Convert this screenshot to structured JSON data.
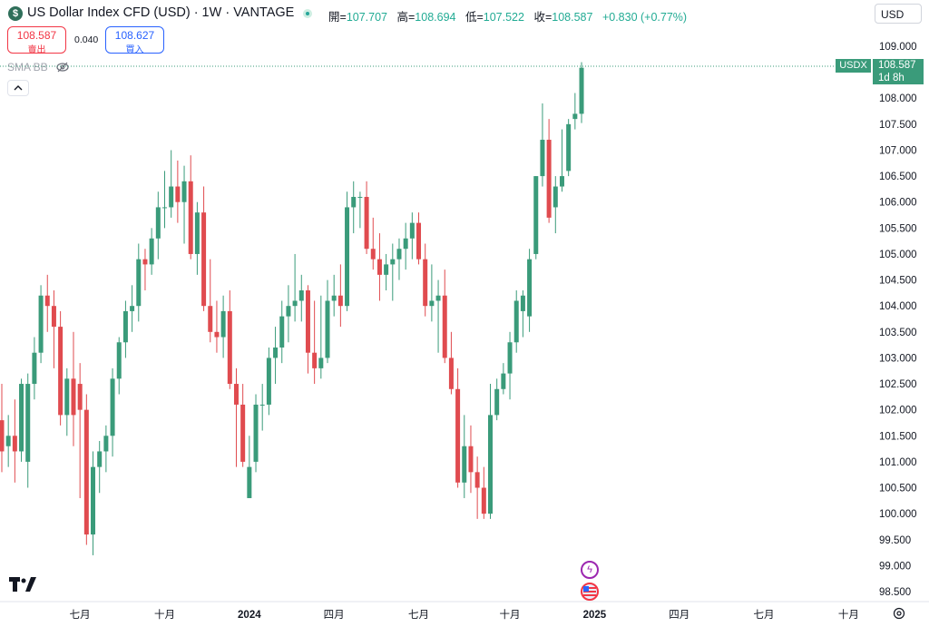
{
  "header": {
    "symbol_icon": "$",
    "title": "US Dollar Index CFD (USD) · 1W · VANTAGE",
    "ohlc": [
      {
        "label": "開=",
        "value": "107.707"
      },
      {
        "label": "高=",
        "value": "108.694"
      },
      {
        "label": "低=",
        "value": "107.522"
      },
      {
        "label": "收=",
        "value": "108.587"
      },
      {
        "label": "",
        "value": "+0.830 (+0.77%)"
      }
    ],
    "currency": "USD"
  },
  "trade": {
    "sell_price": "108.587",
    "sell_label": "賣出",
    "spread": "0.040",
    "buy_price": "108.627",
    "buy_label": "買入"
  },
  "indicator": {
    "name": "SMA BB"
  },
  "price_tag": {
    "symbol": "USDX",
    "price": "108.587",
    "countdown": "1d 8h"
  },
  "colors": {
    "up": "#3a9b7a",
    "down": "#e04b4f",
    "grid": "#f0f3fa"
  },
  "chart_data": {
    "type": "candlestick",
    "y_axis_labels": [
      "109.000",
      "108.500",
      "108.000",
      "107.500",
      "107.000",
      "106.500",
      "106.000",
      "105.500",
      "105.000",
      "104.500",
      "104.000",
      "103.500",
      "103.000",
      "102.500",
      "102.000",
      "101.500",
      "101.000",
      "100.500",
      "100.000",
      "99.500",
      "99.000",
      "98.500"
    ],
    "ylim": [
      98.3,
      109.3
    ],
    "x_axis_labels": [
      {
        "text": "七月",
        "bold": false
      },
      {
        "text": "十月",
        "bold": false
      },
      {
        "text": "2024",
        "bold": true
      },
      {
        "text": "四月",
        "bold": false
      },
      {
        "text": "七月",
        "bold": false
      },
      {
        "text": "十月",
        "bold": false
      },
      {
        "text": "2025",
        "bold": true
      },
      {
        "text": "四月",
        "bold": false
      },
      {
        "text": "七月",
        "bold": false
      },
      {
        "text": "十月",
        "bold": false
      }
    ],
    "x_label_candle_index": [
      12,
      25,
      38,
      51,
      64,
      78,
      91,
      104,
      117,
      130
    ],
    "candles": [
      {
        "o": 101.8,
        "h": 102.5,
        "l": 100.8,
        "c": 101.2
      },
      {
        "o": 101.3,
        "h": 101.9,
        "l": 100.9,
        "c": 101.5
      },
      {
        "o": 101.5,
        "h": 102.2,
        "l": 100.6,
        "c": 101.2
      },
      {
        "o": 101.2,
        "h": 102.6,
        "l": 101.0,
        "c": 102.5
      },
      {
        "o": 101.0,
        "h": 102.7,
        "l": 100.5,
        "c": 102.5
      },
      {
        "o": 102.5,
        "h": 103.4,
        "l": 102.2,
        "c": 103.1
      },
      {
        "o": 103.1,
        "h": 104.4,
        "l": 102.9,
        "c": 104.2
      },
      {
        "o": 104.2,
        "h": 104.6,
        "l": 103.5,
        "c": 104.0
      },
      {
        "o": 104.0,
        "h": 104.3,
        "l": 102.8,
        "c": 103.6
      },
      {
        "o": 103.6,
        "h": 103.9,
        "l": 101.7,
        "c": 101.9
      },
      {
        "o": 101.9,
        "h": 102.8,
        "l": 101.5,
        "c": 102.6
      },
      {
        "o": 102.6,
        "h": 103.5,
        "l": 101.3,
        "c": 101.9
      },
      {
        "o": 102.5,
        "h": 102.9,
        "l": 100.3,
        "c": 102.0
      },
      {
        "o": 102.0,
        "h": 102.3,
        "l": 99.4,
        "c": 99.6
      },
      {
        "o": 99.6,
        "h": 101.2,
        "l": 99.2,
        "c": 100.9
      },
      {
        "o": 100.9,
        "h": 101.4,
        "l": 100.4,
        "c": 101.2
      },
      {
        "o": 101.2,
        "h": 101.7,
        "l": 100.8,
        "c": 101.5
      },
      {
        "o": 101.5,
        "h": 102.8,
        "l": 101.1,
        "c": 102.6
      },
      {
        "o": 102.6,
        "h": 103.4,
        "l": 102.3,
        "c": 103.3
      },
      {
        "o": 103.3,
        "h": 104.1,
        "l": 103.0,
        "c": 103.9
      },
      {
        "o": 103.9,
        "h": 104.4,
        "l": 103.5,
        "c": 104.0
      },
      {
        "o": 104.0,
        "h": 105.2,
        "l": 103.7,
        "c": 104.9
      },
      {
        "o": 104.9,
        "h": 105.1,
        "l": 104.3,
        "c": 104.8
      },
      {
        "o": 104.8,
        "h": 105.5,
        "l": 104.6,
        "c": 105.3
      },
      {
        "o": 105.3,
        "h": 106.2,
        "l": 104.9,
        "c": 105.9
      },
      {
        "o": 105.9,
        "h": 106.6,
        "l": 105.5,
        "c": 105.9
      },
      {
        "o": 105.9,
        "h": 107.0,
        "l": 105.7,
        "c": 106.3
      },
      {
        "o": 106.3,
        "h": 106.8,
        "l": 105.6,
        "c": 106.0
      },
      {
        "o": 106.0,
        "h": 106.7,
        "l": 105.2,
        "c": 106.4
      },
      {
        "o": 106.4,
        "h": 106.9,
        "l": 104.9,
        "c": 105.0
      },
      {
        "o": 105.0,
        "h": 106.0,
        "l": 104.6,
        "c": 105.8
      },
      {
        "o": 105.8,
        "h": 106.3,
        "l": 103.9,
        "c": 104.0
      },
      {
        "o": 104.0,
        "h": 104.9,
        "l": 103.3,
        "c": 103.5
      },
      {
        "o": 103.5,
        "h": 104.1,
        "l": 103.1,
        "c": 103.4
      },
      {
        "o": 103.4,
        "h": 104.2,
        "l": 103.0,
        "c": 103.9
      },
      {
        "o": 103.9,
        "h": 104.3,
        "l": 102.4,
        "c": 102.5
      },
      {
        "o": 102.5,
        "h": 102.8,
        "l": 100.9,
        "c": 102.1
      },
      {
        "o": 102.1,
        "h": 102.5,
        "l": 100.9,
        "c": 101.0
      },
      {
        "o": 100.3,
        "h": 101.5,
        "l": 100.3,
        "c": 100.9
      },
      {
        "o": 101.0,
        "h": 102.3,
        "l": 100.8,
        "c": 102.1
      },
      {
        "o": 102.1,
        "h": 102.5,
        "l": 101.6,
        "c": 102.1
      },
      {
        "o": 102.1,
        "h": 103.2,
        "l": 101.9,
        "c": 103.0
      },
      {
        "o": 103.0,
        "h": 103.6,
        "l": 102.5,
        "c": 103.2
      },
      {
        "o": 103.2,
        "h": 104.1,
        "l": 102.9,
        "c": 103.8
      },
      {
        "o": 103.8,
        "h": 104.4,
        "l": 103.3,
        "c": 104.0
      },
      {
        "o": 104.0,
        "h": 105.0,
        "l": 103.7,
        "c": 104.1
      },
      {
        "o": 104.1,
        "h": 104.6,
        "l": 103.7,
        "c": 104.3
      },
      {
        "o": 104.3,
        "h": 104.4,
        "l": 102.7,
        "c": 103.1
      },
      {
        "o": 103.1,
        "h": 104.1,
        "l": 102.5,
        "c": 102.8
      },
      {
        "o": 102.8,
        "h": 104.2,
        "l": 102.6,
        "c": 103.0
      },
      {
        "o": 103.0,
        "h": 104.5,
        "l": 102.9,
        "c": 104.1
      },
      {
        "o": 104.1,
        "h": 104.6,
        "l": 103.8,
        "c": 104.2
      },
      {
        "o": 104.2,
        "h": 104.8,
        "l": 103.6,
        "c": 104.0
      },
      {
        "o": 104.0,
        "h": 106.2,
        "l": 103.9,
        "c": 105.9
      },
      {
        "o": 105.9,
        "h": 106.4,
        "l": 105.4,
        "c": 106.1
      },
      {
        "o": 106.1,
        "h": 106.2,
        "l": 105.5,
        "c": 106.1
      },
      {
        "o": 106.1,
        "h": 106.4,
        "l": 105.0,
        "c": 105.1
      },
      {
        "o": 105.1,
        "h": 105.7,
        "l": 104.7,
        "c": 104.9
      },
      {
        "o": 104.9,
        "h": 105.4,
        "l": 104.1,
        "c": 104.6
      },
      {
        "o": 104.6,
        "h": 105.0,
        "l": 104.3,
        "c": 104.8
      },
      {
        "o": 104.8,
        "h": 105.2,
        "l": 104.1,
        "c": 104.9
      },
      {
        "o": 104.9,
        "h": 105.3,
        "l": 104.5,
        "c": 105.1
      },
      {
        "o": 105.1,
        "h": 105.6,
        "l": 104.7,
        "c": 105.3
      },
      {
        "o": 105.3,
        "h": 105.8,
        "l": 104.9,
        "c": 105.6
      },
      {
        "o": 105.6,
        "h": 105.8,
        "l": 104.8,
        "c": 104.9
      },
      {
        "o": 104.9,
        "h": 105.2,
        "l": 103.8,
        "c": 104.0
      },
      {
        "o": 104.0,
        "h": 104.8,
        "l": 103.7,
        "c": 104.1
      },
      {
        "o": 104.1,
        "h": 104.5,
        "l": 103.1,
        "c": 104.2
      },
      {
        "o": 104.2,
        "h": 104.7,
        "l": 102.9,
        "c": 103.0
      },
      {
        "o": 103.0,
        "h": 103.5,
        "l": 102.3,
        "c": 102.4
      },
      {
        "o": 102.4,
        "h": 102.8,
        "l": 100.5,
        "c": 100.6
      },
      {
        "o": 100.6,
        "h": 101.9,
        "l": 100.3,
        "c": 101.3
      },
      {
        "o": 101.3,
        "h": 101.7,
        "l": 100.4,
        "c": 100.8
      },
      {
        "o": 100.8,
        "h": 101.1,
        "l": 99.9,
        "c": 100.5
      },
      {
        "o": 100.5,
        "h": 100.9,
        "l": 99.9,
        "c": 100.0
      },
      {
        "o": 100.0,
        "h": 102.5,
        "l": 99.9,
        "c": 101.9
      },
      {
        "o": 101.9,
        "h": 102.6,
        "l": 101.8,
        "c": 102.4
      },
      {
        "o": 102.4,
        "h": 102.9,
        "l": 102.3,
        "c": 102.7
      },
      {
        "o": 102.7,
        "h": 103.5,
        "l": 102.2,
        "c": 103.3
      },
      {
        "o": 103.3,
        "h": 104.3,
        "l": 103.1,
        "c": 104.1
      },
      {
        "o": 103.9,
        "h": 104.3,
        "l": 103.4,
        "c": 104.2
      },
      {
        "o": 103.8,
        "h": 105.1,
        "l": 103.5,
        "c": 104.9
      },
      {
        "o": 105.0,
        "h": 106.5,
        "l": 104.9,
        "c": 106.5
      },
      {
        "o": 106.5,
        "h": 107.9,
        "l": 106.3,
        "c": 107.2
      },
      {
        "o": 107.2,
        "h": 107.6,
        "l": 105.6,
        "c": 105.7
      },
      {
        "o": 105.9,
        "h": 106.5,
        "l": 105.4,
        "c": 106.3
      },
      {
        "o": 106.3,
        "h": 107.4,
        "l": 106.2,
        "c": 106.5
      },
      {
        "o": 106.6,
        "h": 107.6,
        "l": 106.5,
        "c": 107.5
      },
      {
        "o": 107.6,
        "h": 108.1,
        "l": 107.4,
        "c": 107.7
      },
      {
        "o": 107.7,
        "h": 108.694,
        "l": 107.522,
        "c": 108.587
      }
    ]
  },
  "icons": {
    "eye": "eye-crossed-icon",
    "collapse": "chevron-up-icon",
    "settings": "gear-icon",
    "logo": "tradingview-logo",
    "event1": "lightning-icon",
    "event2": "us-flag-icon"
  }
}
